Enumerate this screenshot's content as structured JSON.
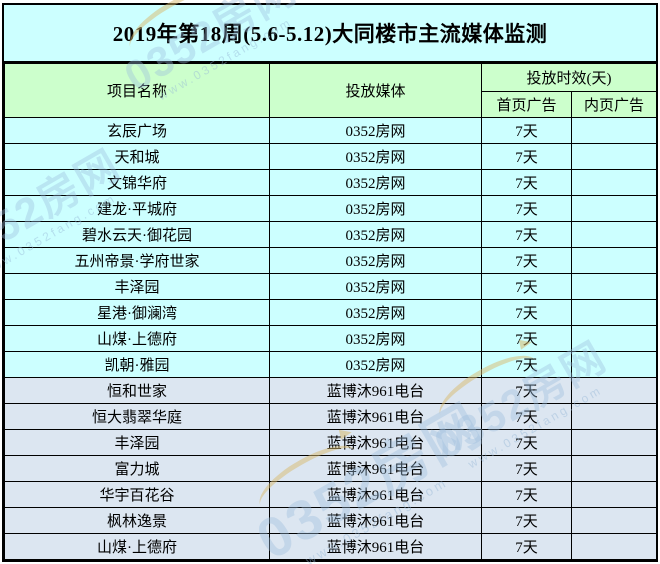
{
  "title": "2019年第18周(5.6-5.12)大同楼市主流媒体监测",
  "columns": {
    "project": "项目名称",
    "media": "投放媒体",
    "duration_group": "投放时效(天)",
    "home_ad": "首页广告",
    "inner_ad": "内页广告"
  },
  "rows": [
    {
      "project": "玄辰广场",
      "media": "0352房网",
      "home_ad": "7天",
      "inner_ad": "",
      "group": "web"
    },
    {
      "project": "天和城",
      "media": "0352房网",
      "home_ad": "7天",
      "inner_ad": "",
      "group": "web"
    },
    {
      "project": "文锦华府",
      "media": "0352房网",
      "home_ad": "7天",
      "inner_ad": "",
      "group": "web"
    },
    {
      "project": "建龙·平城府",
      "media": "0352房网",
      "home_ad": "7天",
      "inner_ad": "",
      "group": "web"
    },
    {
      "project": "碧水云天·御花园",
      "media": "0352房网",
      "home_ad": "7天",
      "inner_ad": "",
      "group": "web"
    },
    {
      "project": "五州帝景·学府世家",
      "media": "0352房网",
      "home_ad": "7天",
      "inner_ad": "",
      "group": "web"
    },
    {
      "project": "丰泽园",
      "media": "0352房网",
      "home_ad": "7天",
      "inner_ad": "",
      "group": "web"
    },
    {
      "project": "星港·御澜湾",
      "media": "0352房网",
      "home_ad": "7天",
      "inner_ad": "",
      "group": "web"
    },
    {
      "project": "山煤·上德府",
      "media": "0352房网",
      "home_ad": "7天",
      "inner_ad": "",
      "group": "web"
    },
    {
      "project": "凯朝·雅园",
      "media": "0352房网",
      "home_ad": "7天",
      "inner_ad": "",
      "group": "web"
    },
    {
      "project": "恒和世家",
      "media": "蓝博沐961电台",
      "home_ad": "7天",
      "inner_ad": "",
      "group": "radio"
    },
    {
      "project": "恒大翡翠华庭",
      "media": "蓝博沐961电台",
      "home_ad": "7天",
      "inner_ad": "",
      "group": "radio"
    },
    {
      "project": "丰泽园",
      "media": "蓝博沐961电台",
      "home_ad": "7天",
      "inner_ad": "",
      "group": "radio"
    },
    {
      "project": "富力城",
      "media": "蓝博沐961电台",
      "home_ad": "7天",
      "inner_ad": "",
      "group": "radio"
    },
    {
      "project": "华宇百花谷",
      "media": "蓝博沐961电台",
      "home_ad": "7天",
      "inner_ad": "",
      "group": "radio"
    },
    {
      "project": "枫林逸景",
      "media": "蓝博沐961电台",
      "home_ad": "7天",
      "inner_ad": "",
      "group": "radio"
    },
    {
      "project": "山煤·上德府",
      "media": "蓝博沐961电台",
      "home_ad": "7天",
      "inner_ad": "",
      "group": "radio"
    }
  ],
  "watermark": {
    "text": "0352房网",
    "subtext": "www.0352fang.com"
  },
  "colors": {
    "title_bg": "#CCFFFF",
    "header_bg": "#CCFFCC",
    "web_row_bg": "#CCFFFF",
    "radio_row_bg": "#DCE6F1",
    "border": "#000000",
    "text": "#000000",
    "watermark_text": "#9BBEDC",
    "watermark_swoosh": "#D7B96E"
  },
  "chart_data": {
    "type": "table",
    "title": "2019年第18周(5.6-5.12)大同楼市主流媒体监测",
    "columns": [
      "项目名称",
      "投放媒体",
      "投放时效(天) 首页广告",
      "投放时效(天) 内页广告"
    ],
    "rows": [
      [
        "玄辰广场",
        "0352房网",
        "7天",
        ""
      ],
      [
        "天和城",
        "0352房网",
        "7天",
        ""
      ],
      [
        "文锦华府",
        "0352房网",
        "7天",
        ""
      ],
      [
        "建龙·平城府",
        "0352房网",
        "7天",
        ""
      ],
      [
        "碧水云天·御花园",
        "0352房网",
        "7天",
        ""
      ],
      [
        "五州帝景·学府世家",
        "0352房网",
        "7天",
        ""
      ],
      [
        "丰泽园",
        "0352房网",
        "7天",
        ""
      ],
      [
        "星港·御澜湾",
        "0352房网",
        "7天",
        ""
      ],
      [
        "山煤·上德府",
        "0352房网",
        "7天",
        ""
      ],
      [
        "凯朝·雅园",
        "0352房网",
        "7天",
        ""
      ],
      [
        "恒和世家",
        "蓝博沐961电台",
        "7天",
        ""
      ],
      [
        "恒大翡翠华庭",
        "蓝博沐961电台",
        "7天",
        ""
      ],
      [
        "丰泽园",
        "蓝博沐961电台",
        "7天",
        ""
      ],
      [
        "富力城",
        "蓝博沐961电台",
        "7天",
        ""
      ],
      [
        "华宇百花谷",
        "蓝博沐961电台",
        "7天",
        ""
      ],
      [
        "枫林逸景",
        "蓝博沐961电台",
        "7天",
        ""
      ],
      [
        "山煤·上德府",
        "蓝博沐961电台",
        "7天",
        ""
      ]
    ]
  }
}
